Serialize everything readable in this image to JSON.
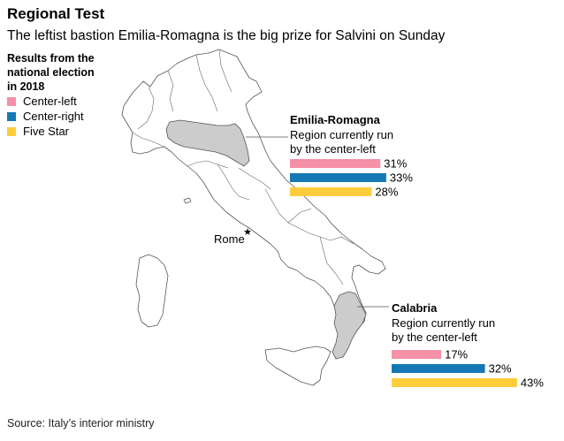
{
  "header": {
    "title": "Regional Test",
    "subtitle": "The leftist bastion Emilia-Romagna is the big prize for Salvini on Sunday"
  },
  "legend": {
    "heading_lines": [
      "Results from the",
      "national election",
      "in 2018"
    ],
    "items": [
      {
        "label": "Center-left",
        "color": "#f590a6"
      },
      {
        "label": "Center-right",
        "color": "#1478b5"
      },
      {
        "label": "Five Star",
        "color": "#fdcd3c"
      }
    ]
  },
  "map": {
    "city_label": "Rome",
    "land_color": "#ffffff",
    "highlight_color": "#cccccc"
  },
  "chart_data": [
    {
      "type": "bar",
      "title": "Emilia-Romagna",
      "subtitle": "Region currently run by the center-left",
      "categories": [
        "Center-left",
        "Center-right",
        "Five Star"
      ],
      "values": [
        31,
        33,
        28
      ],
      "labels": [
        "31%",
        "33%",
        "28%"
      ],
      "colors": [
        "#f590a6",
        "#1478b5",
        "#fdcd3c"
      ]
    },
    {
      "type": "bar",
      "title": "Calabria",
      "subtitle": "Region currently run by the center-left",
      "categories": [
        "Center-left",
        "Center-right",
        "Five Star"
      ],
      "values": [
        17,
        32,
        43
      ],
      "labels": [
        "17%",
        "32%",
        "43%"
      ],
      "colors": [
        "#f590a6",
        "#1478b5",
        "#fdcd3c"
      ]
    }
  ],
  "footer": {
    "source": "Source: Italy’s interior ministry"
  }
}
